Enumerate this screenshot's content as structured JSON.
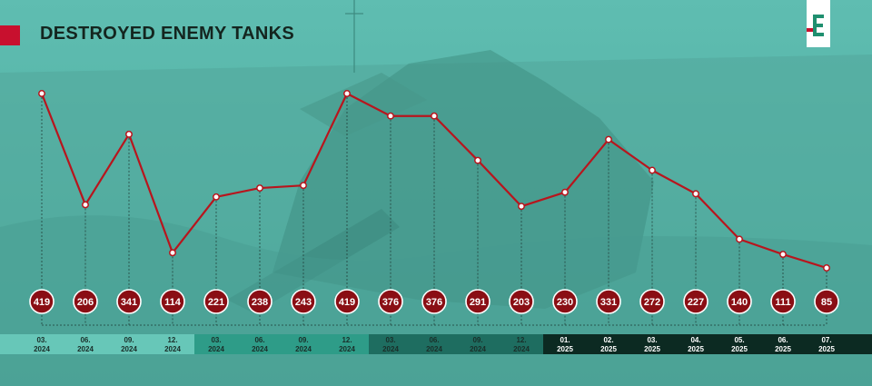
{
  "title": "DESTROYED ENEMY TANKS",
  "logo_text": "Є",
  "colors": {
    "line": "#b8151d",
    "marker_fill": "#8a0e14",
    "band_light": "#67c7b8",
    "band_mid": "#2e9c88",
    "band_dark": "#1e6d60",
    "band_darkest": "#0c2a22",
    "background": "#4fb0a4"
  },
  "chart_data": {
    "type": "line",
    "title": "DESTROYED ENEMY TANKS",
    "x_labels": [
      [
        "03.",
        "2024"
      ],
      [
        "06.",
        "2024"
      ],
      [
        "09.",
        "2024"
      ],
      [
        "12.",
        "2024"
      ],
      [
        "03.",
        "2024"
      ],
      [
        "06.",
        "2024"
      ],
      [
        "09.",
        "2024"
      ],
      [
        "12.",
        "2024"
      ],
      [
        "03.",
        "2024"
      ],
      [
        "06.",
        "2024"
      ],
      [
        "09.",
        "2024"
      ],
      [
        "12.",
        "2024"
      ],
      [
        "01.",
        "2025"
      ],
      [
        "02.",
        "2025"
      ],
      [
        "03.",
        "2025"
      ],
      [
        "04.",
        "2025"
      ],
      [
        "05.",
        "2025"
      ],
      [
        "06.",
        "2025"
      ],
      [
        "07.",
        "2025"
      ]
    ],
    "series": [
      {
        "values": [
          419,
          206,
          341,
          114,
          221,
          238,
          243,
          419,
          376,
          376,
          291,
          203,
          230,
          331,
          272,
          227,
          140,
          111,
          85
        ]
      }
    ],
    "bands": [
      {
        "from": 0,
        "to": 3,
        "tone": "light"
      },
      {
        "from": 4,
        "to": 7,
        "tone": "mid"
      },
      {
        "from": 8,
        "to": 11,
        "tone": "dark"
      },
      {
        "from": 12,
        "to": 18,
        "tone": "darkest"
      }
    ],
    "grid": false,
    "legend": "none"
  }
}
